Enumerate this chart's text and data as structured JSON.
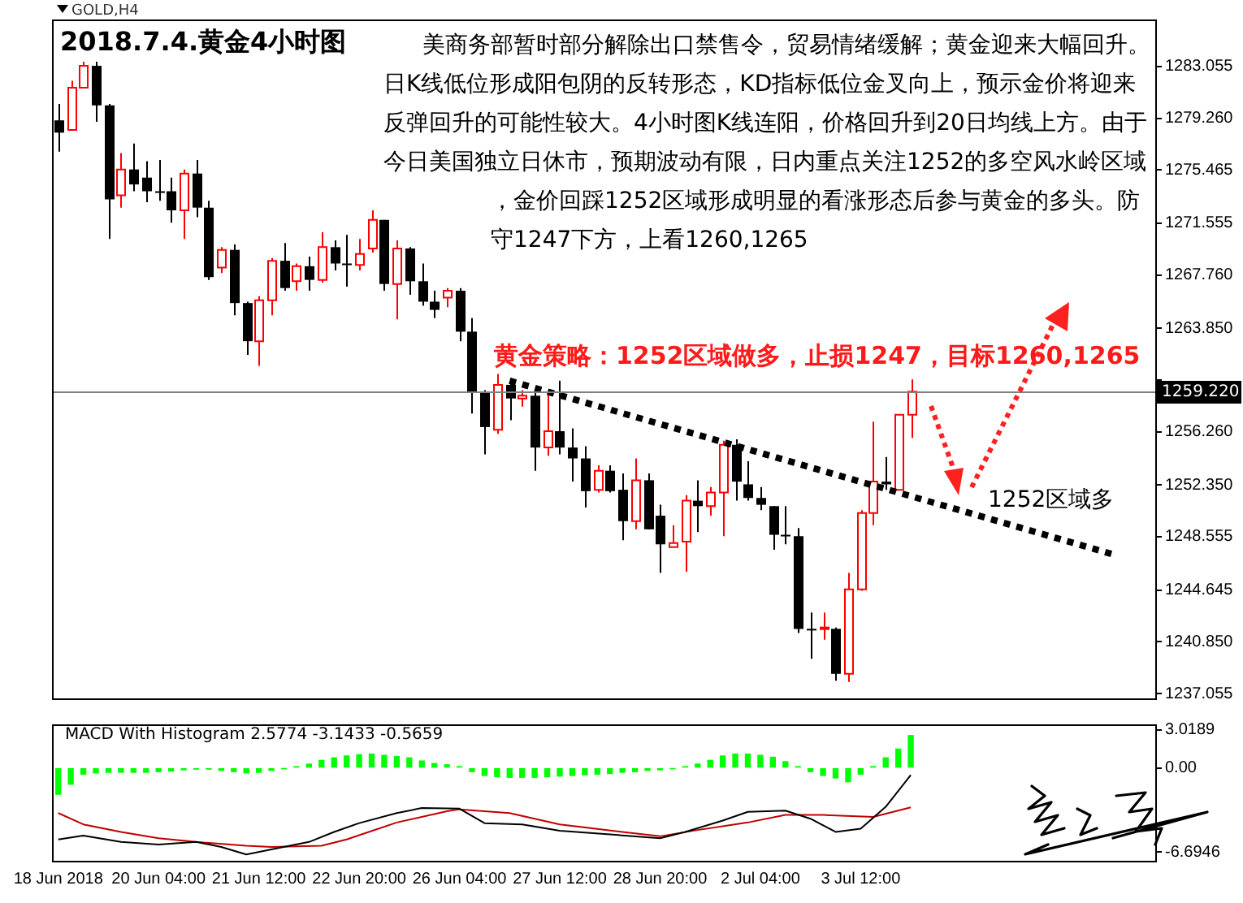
{
  "chart_data": [
    {
      "type": "candlestick",
      "title": "2018.7.4.黄金4小时图",
      "annotations": [
        "GOLD,H4",
        "美商务部暂时部分解除出口禁售令，贸易情绪缓解；黄金迎来大幅回升。日K线低位形成阳包阴的反转形态，KD指标低位金叉向上，预示金价将迎来反弹回升的可能性较大。4小时图K线连阳，价格回升到20日均线上方。由于今日美国独立日休市，预期波动有限，日内重点关注1252的多空风水岭区域，金价回踩1252区域形成明显的看涨形态后参与黄金的多头。防守1247下方，上看1260,1265",
        "黄金策略：1252区域做多，止损1247，目标1260,1265",
        "1252区域多"
      ],
      "categories": [
        null,
        null,
        null,
        null,
        null,
        null,
        null,
        null,
        null,
        null,
        null,
        null,
        null,
        null,
        null,
        null,
        null,
        null,
        null,
        null,
        null,
        null,
        null,
        null,
        null,
        null,
        null,
        null,
        null,
        null,
        null,
        null,
        null,
        null,
        null,
        null,
        null,
        null,
        null,
        null,
        null,
        null,
        null,
        null,
        null,
        null,
        null,
        null,
        null,
        null,
        null,
        null,
        null,
        null,
        null,
        null,
        null,
        null,
        null,
        null,
        null,
        null,
        null,
        null,
        null,
        null,
        null,
        null,
        null,
        null,
        null,
        null,
        null,
        null,
        null,
        null,
        null,
        null,
        null,
        null,
        null,
        null,
        null,
        null,
        null,
        null,
        null,
        null
      ],
      "ohlc": [
        [
          1279.1,
          1280.3,
          1276.8,
          1278.2
        ],
        [
          1278.4,
          1282.0,
          1278.4,
          1281.5
        ],
        [
          1281.5,
          1283.4,
          1281.5,
          1283.1
        ],
        [
          1283.1,
          1283.4,
          1279.0,
          1280.2
        ],
        [
          1280.2,
          1280.3,
          1270.4,
          1273.3
        ],
        [
          1273.6,
          1276.7,
          1272.7,
          1275.5
        ],
        [
          1275.5,
          1277.4,
          1273.9,
          1274.4
        ],
        [
          1274.9,
          1276.1,
          1273.1,
          1273.9
        ],
        [
          1273.9,
          1276.2,
          1273.2,
          1273.8
        ],
        [
          1273.9,
          1274.9,
          1271.6,
          1272.5
        ],
        [
          1272.5,
          1275.5,
          1270.4,
          1275.2
        ],
        [
          1275.2,
          1276.2,
          1272.0,
          1272.7
        ],
        [
          1272.7,
          1273.2,
          1267.4,
          1267.6
        ],
        [
          1268.3,
          1269.8,
          1267.9,
          1269.6
        ],
        [
          1269.6,
          1270.0,
          1264.8,
          1265.7
        ],
        [
          1265.7,
          1265.8,
          1261.9,
          1262.9
        ],
        [
          1262.9,
          1266.2,
          1261.1,
          1265.9
        ],
        [
          1265.9,
          1269.0,
          1264.8,
          1268.8
        ],
        [
          1268.8,
          1270.1,
          1266.6,
          1266.8
        ],
        [
          1267.3,
          1268.6,
          1266.6,
          1268.4
        ],
        [
          1268.4,
          1269.1,
          1266.6,
          1267.4
        ],
        [
          1267.4,
          1270.9,
          1267.2,
          1269.8
        ],
        [
          1269.8,
          1270.3,
          1268.1,
          1268.6
        ],
        [
          1268.6,
          1270.7,
          1266.9,
          1268.5
        ],
        [
          1268.5,
          1270.4,
          1268.1,
          1269.3
        ],
        [
          1269.7,
          1272.5,
          1269.4,
          1271.8
        ],
        [
          1271.8,
          1271.8,
          1266.6,
          1267.1
        ],
        [
          1267.1,
          1270.3,
          1264.5,
          1269.7
        ],
        [
          1269.7,
          1269.8,
          1266.3,
          1267.3
        ],
        [
          1267.3,
          1268.6,
          1265.5,
          1265.8
        ],
        [
          1265.8,
          1266.6,
          1264.6,
          1265.2
        ],
        [
          1266.1,
          1266.8,
          1265.4,
          1266.6
        ],
        [
          1266.6,
          1266.8,
          1262.9,
          1263.6
        ],
        [
          1263.6,
          1264.6,
          1257.6,
          1259.2
        ],
        [
          1259.2,
          1259.3,
          1254.6,
          1256.6
        ],
        [
          1256.4,
          1260.5,
          1256.1,
          1259.7
        ],
        [
          1259.7,
          1260.2,
          1257.1,
          1258.7
        ],
        [
          1258.7,
          1259.3,
          1258.1,
          1258.9
        ],
        [
          1258.9,
          1259.2,
          1253.4,
          1255.1
        ],
        [
          1255.1,
          1259.2,
          1254.5,
          1256.3
        ],
        [
          1256.3,
          1260.0,
          1254.6,
          1255.1
        ],
        [
          1255.1,
          1256.5,
          1252.6,
          1254.3
        ],
        [
          1254.3,
          1255.2,
          1250.7,
          1251.9
        ],
        [
          1252.0,
          1253.8,
          1251.8,
          1253.4
        ],
        [
          1253.4,
          1253.8,
          1251.8,
          1251.9
        ],
        [
          1252.0,
          1253.2,
          1248.3,
          1249.7
        ],
        [
          1249.7,
          1254.3,
          1249.1,
          1252.7
        ],
        [
          1252.7,
          1253.2,
          1249.1,
          1249.1
        ],
        [
          1250.1,
          1250.9,
          1245.9,
          1248.0
        ],
        [
          1247.8,
          1249.4,
          1247.8,
          1248.1
        ],
        [
          1248.2,
          1251.6,
          1246.0,
          1251.2
        ],
        [
          1251.2,
          1252.7,
          1248.9,
          1250.8
        ],
        [
          1250.8,
          1252.2,
          1250.1,
          1251.8
        ],
        [
          1251.8,
          1255.6,
          1248.6,
          1255.3
        ],
        [
          1255.3,
          1255.7,
          1251.2,
          1252.6
        ],
        [
          1252.4,
          1254.1,
          1251.2,
          1251.4
        ],
        [
          1251.4,
          1252.2,
          1250.5,
          1250.9
        ],
        [
          1250.8,
          1250.8,
          1247.6,
          1248.7
        ],
        [
          1248.7,
          1250.8,
          1248.0,
          1248.6
        ],
        [
          1248.6,
          1249.2,
          1241.5,
          1241.8
        ],
        [
          1241.8,
          1243.0,
          1239.6,
          1241.8
        ],
        [
          1241.8,
          1243.0,
          1241.0,
          1241.9
        ],
        [
          1241.8,
          1241.9,
          1238.0,
          1238.5
        ],
        [
          1238.5,
          1245.9,
          1237.9,
          1244.7
        ],
        [
          1244.7,
          1250.5,
          1244.6,
          1250.3
        ],
        [
          1250.3,
          1257.0,
          1249.4,
          1252.6
        ],
        [
          1252.6,
          1254.4,
          1252.0,
          1252.4
        ],
        [
          1252.0,
          1257.5,
          1252.0,
          1257.5
        ],
        [
          1257.5,
          1260.1,
          1255.8,
          1259.2
        ],
        null,
        null,
        null,
        null,
        null,
        null,
        null,
        null,
        null,
        null,
        null,
        null,
        null,
        null,
        null,
        null,
        null,
        null,
        null
      ],
      "colors": [
        "#000000",
        "#ff0000",
        "#ff0000",
        "#000000",
        "#000000",
        "#ff0000",
        "#000000",
        "#000000",
        "#000000",
        "#000000",
        "#ff0000",
        "#000000",
        "#000000",
        "#ff0000",
        "#000000",
        "#000000",
        "#ff0000",
        "#ff0000",
        "#000000",
        "#ff0000",
        "#000000",
        "#ff0000",
        "#000000",
        "#000000",
        "#ff0000",
        "#ff0000",
        "#000000",
        "#ff0000",
        "#000000",
        "#000000",
        "#000000",
        "#ff0000",
        "#000000",
        "#000000",
        "#000000",
        "#ff0000",
        "#000000",
        "#ff0000",
        "#000000",
        "#ff0000",
        "#000000",
        "#000000",
        "#000000",
        "#ff0000",
        "#000000",
        "#000000",
        "#ff0000",
        "#000000",
        "#000000",
        "#ff0000",
        "#ff0000",
        "#000000",
        "#ff0000",
        "#ff0000",
        "#000000",
        "#000000",
        "#000000",
        "#000000",
        "#000000",
        "#000000",
        "#000000",
        "#ff0000",
        "#000000",
        "#ff0000",
        "#ff0000",
        "#ff0000",
        "#000000",
        "#ff0000",
        "#ff0000",
        null,
        null,
        null,
        null,
        null,
        null,
        null,
        null,
        null,
        null,
        null,
        null,
        null,
        null,
        null,
        null,
        null,
        null,
        null
      ],
      "series": [
        {
          "type": "line",
          "color": "#000000",
          "line_style": "dotted",
          "values": [
            null,
            null,
            null,
            null,
            null,
            null,
            null,
            null,
            null,
            null,
            null,
            null,
            null,
            null,
            null,
            null,
            null,
            null,
            null,
            null,
            null,
            null,
            null,
            null,
            null,
            null,
            null,
            null,
            null,
            null,
            null,
            null,
            null,
            null,
            null,
            null,
            1260.0,
            null,
            null,
            null,
            null,
            null,
            null,
            null,
            null,
            null,
            null,
            null,
            null,
            null,
            null,
            null,
            null,
            null,
            null,
            null,
            null,
            null,
            null,
            null,
            null,
            null,
            null,
            null,
            null,
            null,
            null,
            null,
            null,
            null,
            null,
            null,
            null,
            null,
            null,
            null,
            null,
            null,
            null,
            null,
            null,
            null,
            null,
            null,
            1247.3,
            null,
            null,
            null
          ]
        }
      ],
      "ylim": [
        1236.7,
        1286.5
      ],
      "yticks": [
        1283.055,
        {
          "value": 1279.26,
          "label": "1279.260"
        },
        1275.465,
        1271.555,
        {
          "value": 1267.76,
          "label": "1267.760"
        },
        {
          "value": 1263.85,
          "label": "1263.850"
        },
        {
          "value": 1260.055,
          "label": null
        },
        {
          "value": 1256.26,
          "label": "1256.260"
        },
        {
          "value": 1252.35,
          "label": "1252.350"
        },
        1248.555,
        1244.645,
        {
          "value": 1240.85,
          "label": "1240.850"
        },
        1237.055
      ],
      "tick_labels": "y",
      "ref_lines": [
        {
          "axis": "y",
          "value": 1259.22,
          "label": "1259.220",
          "color": "#808080"
        }
      ]
    },
    {
      "type": "bar",
      "title": "MACD With Histogram 2.5774 -3.1433 -0.5659",
      "categories": [
        "18 Jun 2018",
        null,
        null,
        null,
        null,
        null,
        null,
        null,
        "20 Jun 04:00",
        null,
        null,
        null,
        null,
        null,
        null,
        null,
        "21 Jun 12:00",
        null,
        null,
        null,
        null,
        null,
        null,
        null,
        "22 Jun 20:00",
        null,
        null,
        null,
        null,
        null,
        null,
        null,
        "26 Jun 04:00",
        null,
        null,
        null,
        null,
        null,
        null,
        null,
        "27 Jun 12:00",
        null,
        null,
        null,
        null,
        null,
        null,
        null,
        "28 Jun 20:00",
        null,
        null,
        null,
        null,
        null,
        null,
        null,
        "2 Jul 04:00",
        null,
        null,
        null,
        null,
        null,
        null,
        null,
        "3 Jul 12:00",
        null,
        null,
        null,
        null,
        null,
        null,
        null,
        null,
        null,
        null,
        null,
        null,
        null,
        null,
        null,
        null,
        null,
        null,
        null,
        null,
        null,
        null,
        null
      ],
      "series": [
        {
          "type": "bar",
          "color": "#00ff00",
          "values": [
            -2.1,
            -1.3,
            -0.5,
            -0.4,
            -0.35,
            -0.35,
            -0.35,
            -0.35,
            -0.3,
            -0.25,
            -0.15,
            -0.1,
            -0.1,
            -0.2,
            -0.3,
            -0.4,
            -0.35,
            -0.2,
            -0.05,
            0.1,
            0.3,
            0.6,
            0.8,
            0.95,
            1.05,
            1.1,
            1.0,
            0.9,
            0.8,
            0.55,
            0.35,
            0.25,
            0.1,
            -0.3,
            -0.6,
            -0.7,
            -0.75,
            -0.75,
            -0.75,
            -0.7,
            -0.65,
            -0.6,
            -0.55,
            -0.5,
            -0.45,
            -0.35,
            -0.3,
            -0.2,
            -0.15,
            -0.05,
            0.1,
            0.3,
            0.6,
            0.95,
            1.1,
            1.1,
            1.0,
            0.85,
            0.5,
            0.1,
            -0.3,
            -0.6,
            -0.8,
            -1.1,
            -0.5,
            0.1,
            0.8,
            1.5,
            2.5774,
            null,
            null,
            null,
            null,
            null,
            null,
            null,
            null,
            null,
            null,
            null,
            null,
            null,
            null,
            null,
            null,
            null,
            null,
            null
          ]
        },
        {
          "type": "line",
          "color": "#000000",
          "values": [
            -5.7,
            null,
            -5.4,
            null,
            null,
            -5.9,
            null,
            null,
            -6.1,
            null,
            null,
            -5.9,
            null,
            -6.3,
            null,
            -6.9,
            null,
            -6.5,
            null,
            null,
            -5.9,
            null,
            -5.1,
            null,
            -4.4,
            null,
            null,
            -3.6,
            null,
            -3.2,
            null,
            null,
            -3.25,
            null,
            -4.4,
            null,
            null,
            -4.5,
            null,
            null,
            -5.0,
            null,
            null,
            null,
            -5.3,
            null,
            null,
            null,
            -5.6,
            null,
            -5.1,
            null,
            null,
            -4.2,
            null,
            -3.5,
            null,
            null,
            -3.4,
            null,
            -4.05,
            null,
            -5.1,
            null,
            -4.85,
            null,
            -3.1,
            null,
            -0.5659,
            null,
            null,
            null,
            null,
            null,
            null,
            null,
            null,
            null,
            null,
            null,
            null,
            null,
            null,
            null,
            null,
            null,
            null,
            null
          ]
        },
        {
          "type": "line",
          "color": "#c00000",
          "values": [
            -3.6,
            null,
            -4.5,
            null,
            null,
            -5.1,
            null,
            null,
            -5.6,
            null,
            null,
            -5.9,
            null,
            null,
            null,
            -6.2,
            null,
            -6.3,
            null,
            null,
            null,
            -6.2,
            null,
            -5.7,
            null,
            null,
            null,
            -4.35,
            null,
            null,
            null,
            -3.45,
            -3.3,
            null,
            null,
            null,
            -3.6,
            null,
            null,
            null,
            -4.5,
            null,
            null,
            null,
            null,
            -5.1,
            null,
            null,
            -5.45,
            null,
            null,
            -4.95,
            null,
            null,
            null,
            -4.35,
            null,
            null,
            -3.75,
            null,
            null,
            -3.75,
            null,
            null,
            null,
            -3.9,
            null,
            null,
            -3.1433,
            null,
            null,
            null,
            null,
            null,
            null,
            null,
            null,
            null,
            null,
            null,
            null,
            null,
            null,
            null,
            null,
            null,
            null,
            null
          ]
        }
      ],
      "ylim": [
        -7.4,
        3.47
      ],
      "yticks": [
        3.0189,
        {
          "value": 0,
          "label": "0.00"
        },
        -6.6946
      ],
      "marker": "none"
    }
  ]
}
